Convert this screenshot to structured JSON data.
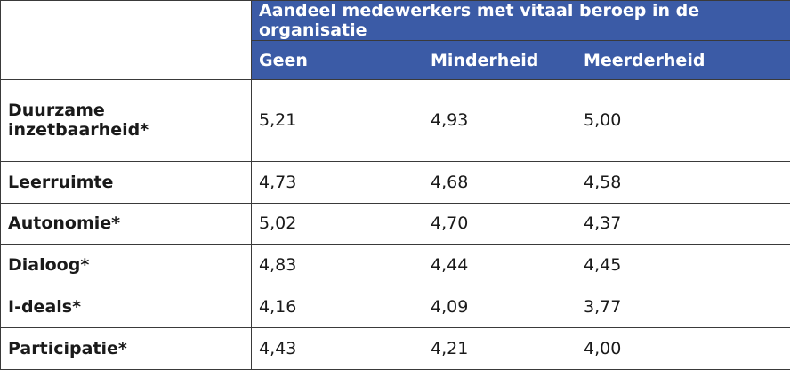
{
  "table": {
    "group_header": "Aandeel medewerkers met vitaal beroep in de organisatie",
    "columns": [
      "Geen",
      "Minderheid",
      "Meerderheid"
    ],
    "rows": [
      [
        "Duurzame inzetbaarheid*",
        "5,21",
        "4,93",
        "5,00"
      ],
      [
        "Leerruimte",
        "4,73",
        "4,68",
        "4,58"
      ],
      [
        "Autonomie*",
        "5,02",
        "4,70",
        "4,37"
      ],
      [
        "Dialoog*",
        "4,83",
        "4,44",
        "4,45"
      ],
      [
        "I-deals*",
        "4,16",
        "4,09",
        "3,77"
      ],
      [
        "Participatie*",
        "4,43",
        "4,21",
        "4,00"
      ]
    ]
  }
}
